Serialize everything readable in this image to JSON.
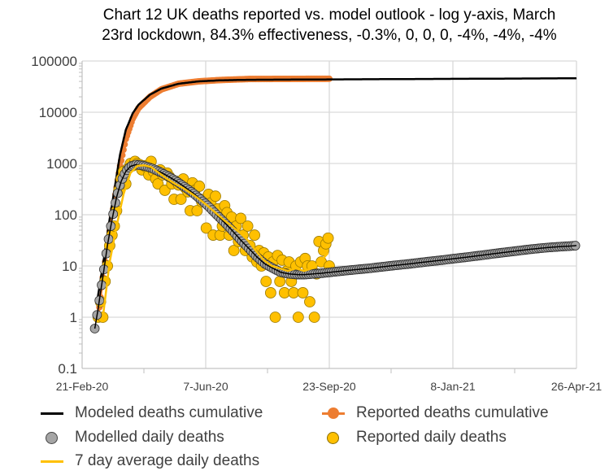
{
  "chart_data": {
    "type": "scatter",
    "title_line1": "Chart 12 UK deaths reported vs. model outlook - log y-axis, March",
    "title_line2": "23rd lockdown, 84.3% effectiveness, -0.3%, 0, 0, 0, -4%, -4%, -4%",
    "y_scale": "log",
    "ylim": [
      0.1,
      100000
    ],
    "y_ticks": [
      "100000",
      "10000",
      "1000",
      "100",
      "10",
      "1",
      "0.1"
    ],
    "xlim": [
      "2020-02-21",
      "2021-04-26"
    ],
    "x_ticks": [
      "21-Feb-20",
      "7-Jun-20",
      "23-Sep-20",
      "8-Jan-21",
      "26-Apr-21"
    ],
    "grid": true,
    "legend_placement": "bottom",
    "series": [
      {
        "name": "Modeled deaths cumulative",
        "kind": "line",
        "color": "#000000",
        "points": [
          [
            "2020-03-05",
            2
          ],
          [
            "2020-03-10",
            10
          ],
          [
            "2020-03-15",
            60
          ],
          [
            "2020-03-20",
            300
          ],
          [
            "2020-03-25",
            1500
          ],
          [
            "2020-03-30",
            4500
          ],
          [
            "2020-04-05",
            9500
          ],
          [
            "2020-04-10",
            14000
          ],
          [
            "2020-04-20",
            22000
          ],
          [
            "2020-04-30",
            29000
          ],
          [
            "2020-05-15",
            36000
          ],
          [
            "2020-06-01",
            40000
          ],
          [
            "2020-06-20",
            42000
          ],
          [
            "2020-07-15",
            43000
          ],
          [
            "2020-09-01",
            43500
          ],
          [
            "2021-04-26",
            46000
          ]
        ]
      },
      {
        "name": "Reported deaths cumulative",
        "kind": "line-marker",
        "color": "#ED7D31",
        "points": [
          [
            "2020-03-06",
            1
          ],
          [
            "2020-03-10",
            6
          ],
          [
            "2020-03-15",
            35
          ],
          [
            "2020-03-20",
            180
          ],
          [
            "2020-03-25",
            900
          ],
          [
            "2020-03-30",
            3000
          ],
          [
            "2020-04-05",
            7500
          ],
          [
            "2020-04-10",
            12000
          ],
          [
            "2020-04-20",
            20000
          ],
          [
            "2020-04-30",
            28000
          ],
          [
            "2020-05-15",
            36000
          ],
          [
            "2020-06-01",
            40000
          ],
          [
            "2020-06-20",
            42500
          ],
          [
            "2020-07-15",
            44500
          ],
          [
            "2020-09-23",
            45000
          ]
        ]
      },
      {
        "name": "Modelled daily deaths",
        "kind": "marker-line",
        "color": "#A5A5A5",
        "points": [
          [
            "2020-03-03",
            0.6
          ],
          [
            "2020-03-06",
            1.5
          ],
          [
            "2020-03-10",
            6
          ],
          [
            "2020-03-14",
            25
          ],
          [
            "2020-03-18",
            80
          ],
          [
            "2020-03-22",
            220
          ],
          [
            "2020-03-26",
            450
          ],
          [
            "2020-03-30",
            700
          ],
          [
            "2020-04-03",
            880
          ],
          [
            "2020-04-08",
            950
          ],
          [
            "2020-04-15",
            900
          ],
          [
            "2020-04-22",
            800
          ],
          [
            "2020-04-29",
            680
          ],
          [
            "2020-05-06",
            560
          ],
          [
            "2020-05-13",
            450
          ],
          [
            "2020-05-20",
            350
          ],
          [
            "2020-05-27",
            270
          ],
          [
            "2020-06-03",
            200
          ],
          [
            "2020-06-10",
            145
          ],
          [
            "2020-06-17",
            100
          ],
          [
            "2020-06-24",
            70
          ],
          [
            "2020-07-01",
            48
          ],
          [
            "2020-07-08",
            32
          ],
          [
            "2020-07-15",
            22
          ],
          [
            "2020-07-22",
            15
          ],
          [
            "2020-07-29",
            11
          ],
          [
            "2020-08-05",
            9
          ],
          [
            "2020-08-12",
            7.5
          ],
          [
            "2020-08-19",
            7
          ],
          [
            "2020-08-26",
            6.8
          ],
          [
            "2020-09-02",
            6.8
          ],
          [
            "2020-09-09",
            7
          ],
          [
            "2020-09-16",
            7.2
          ],
          [
            "2020-09-23",
            7.5
          ],
          [
            "2020-09-30",
            7.8
          ],
          [
            "2020-10-07",
            8.1
          ],
          [
            "2020-10-14",
            8.4
          ],
          [
            "2020-10-21",
            8.7
          ],
          [
            "2020-10-28",
            9
          ],
          [
            "2020-11-04",
            9.4
          ],
          [
            "2020-11-11",
            9.8
          ],
          [
            "2020-11-18",
            10.2
          ],
          [
            "2020-11-25",
            10.6
          ],
          [
            "2020-12-02",
            11
          ],
          [
            "2020-12-09",
            11.5
          ],
          [
            "2020-12-16",
            12
          ],
          [
            "2020-12-23",
            12.5
          ],
          [
            "2020-12-30",
            13
          ],
          [
            "2021-01-06",
            13.6
          ],
          [
            "2021-01-13",
            14.2
          ],
          [
            "2021-01-20",
            14.8
          ],
          [
            "2021-01-27",
            15.5
          ],
          [
            "2021-02-03",
            16.2
          ],
          [
            "2021-02-10",
            17
          ],
          [
            "2021-02-17",
            17.8
          ],
          [
            "2021-02-24",
            18.6
          ],
          [
            "2021-03-03",
            19.4
          ],
          [
            "2021-03-10",
            20.3
          ],
          [
            "2021-03-17",
            21.2
          ],
          [
            "2021-03-24",
            22
          ],
          [
            "2021-03-31",
            22.8
          ],
          [
            "2021-04-07",
            23.4
          ],
          [
            "2021-04-14",
            24
          ],
          [
            "2021-04-21",
            24.5
          ],
          [
            "2021-04-26",
            25
          ]
        ]
      },
      {
        "name": "Reported daily deaths",
        "kind": "marker",
        "color": "#FFC000",
        "points": [
          [
            "2020-03-06",
            1
          ],
          [
            "2020-03-08",
            2
          ],
          [
            "2020-03-10",
            1
          ],
          [
            "2020-03-12",
            5
          ],
          [
            "2020-03-14",
            10
          ],
          [
            "2020-03-16",
            25
          ],
          [
            "2020-03-18",
            40
          ],
          [
            "2020-03-20",
            60
          ],
          [
            "2020-03-22",
            120
          ],
          [
            "2020-03-24",
            300
          ],
          [
            "2020-03-26",
            500
          ],
          [
            "2020-03-28",
            700
          ],
          [
            "2020-03-30",
            400
          ],
          [
            "2020-04-01",
            800
          ],
          [
            "2020-04-03",
            1000
          ],
          [
            "2020-04-05",
            900
          ],
          [
            "2020-04-07",
            1100
          ],
          [
            "2020-04-09",
            1000
          ],
          [
            "2020-04-11",
            950
          ],
          [
            "2020-04-13",
            750
          ],
          [
            "2020-04-15",
            900
          ],
          [
            "2020-04-17",
            850
          ],
          [
            "2020-04-19",
            600
          ],
          [
            "2020-04-21",
            1100
          ],
          [
            "2020-04-23",
            700
          ],
          [
            "2020-04-25",
            500
          ],
          [
            "2020-04-27",
            400
          ],
          [
            "2020-04-29",
            750
          ],
          [
            "2020-05-01",
            600
          ],
          [
            "2020-05-03",
            300
          ],
          [
            "2020-05-05",
            650
          ],
          [
            "2020-05-07",
            550
          ],
          [
            "2020-05-09",
            400
          ],
          [
            "2020-05-11",
            200
          ],
          [
            "2020-05-13",
            450
          ],
          [
            "2020-05-15",
            380
          ],
          [
            "2020-05-17",
            200
          ],
          [
            "2020-05-19",
            500
          ],
          [
            "2020-05-21",
            330
          ],
          [
            "2020-05-23",
            280
          ],
          [
            "2020-05-25",
            120
          ],
          [
            "2020-05-27",
            420
          ],
          [
            "2020-05-29",
            300
          ],
          [
            "2020-05-31",
            120
          ],
          [
            "2020-06-02",
            360
          ],
          [
            "2020-06-04",
            180
          ],
          [
            "2020-06-06",
            200
          ],
          [
            "2020-06-08",
            55
          ],
          [
            "2020-06-10",
            250
          ],
          [
            "2020-06-12",
            170
          ],
          [
            "2020-06-14",
            40
          ],
          [
            "2020-06-16",
            230
          ],
          [
            "2020-06-18",
            130
          ],
          [
            "2020-06-20",
            40
          ],
          [
            "2020-06-22",
            60
          ],
          [
            "2020-06-24",
            150
          ],
          [
            "2020-06-26",
            110
          ],
          [
            "2020-06-28",
            40
          ],
          [
            "2020-06-30",
            90
          ],
          [
            "2020-07-02",
            20
          ],
          [
            "2020-07-04",
            60
          ],
          [
            "2020-07-06",
            30
          ],
          [
            "2020-07-08",
            85
          ],
          [
            "2020-07-10",
            40
          ],
          [
            "2020-07-12",
            20
          ],
          [
            "2020-07-14",
            60
          ],
          [
            "2020-07-16",
            25
          ],
          [
            "2020-07-18",
            15
          ],
          [
            "2020-07-20",
            40
          ],
          [
            "2020-07-22",
            12
          ],
          [
            "2020-07-24",
            20
          ],
          [
            "2020-07-26",
            10
          ],
          [
            "2020-07-28",
            18
          ],
          [
            "2020-07-30",
            5
          ],
          [
            "2020-08-01",
            15
          ],
          [
            "2020-08-03",
            3
          ],
          [
            "2020-08-05",
            12
          ],
          [
            "2020-08-07",
            1
          ],
          [
            "2020-08-09",
            16
          ],
          [
            "2020-08-11",
            5
          ],
          [
            "2020-08-13",
            13
          ],
          [
            "2020-08-15",
            3
          ],
          [
            "2020-08-17",
            8
          ],
          [
            "2020-08-19",
            12
          ],
          [
            "2020-08-21",
            5
          ],
          [
            "2020-08-23",
            3
          ],
          [
            "2020-08-25",
            10
          ],
          [
            "2020-08-27",
            1
          ],
          [
            "2020-08-29",
            12
          ],
          [
            "2020-08-31",
            3
          ],
          [
            "2020-09-02",
            14
          ],
          [
            "2020-09-04",
            10
          ],
          [
            "2020-09-06",
            2
          ],
          [
            "2020-09-08",
            10
          ],
          [
            "2020-09-10",
            1
          ],
          [
            "2020-09-12",
            7
          ],
          [
            "2020-09-14",
            30
          ],
          [
            "2020-09-16",
            12
          ],
          [
            "2020-09-18",
            20
          ],
          [
            "2020-09-20",
            27
          ],
          [
            "2020-09-22",
            35
          ],
          [
            "2020-09-23",
            10
          ]
        ]
      },
      {
        "name": "7 day average daily deaths",
        "kind": "line",
        "color": "#FFC000",
        "points": [
          [
            "2020-03-10",
            1
          ],
          [
            "2020-03-16",
            12
          ],
          [
            "2020-03-22",
            60
          ],
          [
            "2020-03-28",
            250
          ],
          [
            "2020-04-03",
            650
          ],
          [
            "2020-04-09",
            900
          ],
          [
            "2020-04-15",
            920
          ],
          [
            "2020-04-21",
            850
          ],
          [
            "2020-04-28",
            650
          ],
          [
            "2020-05-05",
            500
          ],
          [
            "2020-05-12",
            400
          ],
          [
            "2020-05-19",
            330
          ],
          [
            "2020-05-26",
            260
          ],
          [
            "2020-06-02",
            200
          ],
          [
            "2020-06-09",
            150
          ],
          [
            "2020-06-16",
            110
          ],
          [
            "2020-06-23",
            80
          ],
          [
            "2020-06-30",
            60
          ],
          [
            "2020-07-07",
            45
          ],
          [
            "2020-07-14",
            32
          ],
          [
            "2020-07-21",
            20
          ],
          [
            "2020-07-28",
            13
          ],
          [
            "2020-08-04",
            10
          ],
          [
            "2020-08-11",
            9
          ],
          [
            "2020-08-18",
            8
          ],
          [
            "2020-08-25",
            9
          ],
          [
            "2020-09-01",
            8
          ],
          [
            "2020-09-08",
            9
          ],
          [
            "2020-09-15",
            12
          ],
          [
            "2020-09-22",
            18
          ]
        ]
      }
    ]
  }
}
